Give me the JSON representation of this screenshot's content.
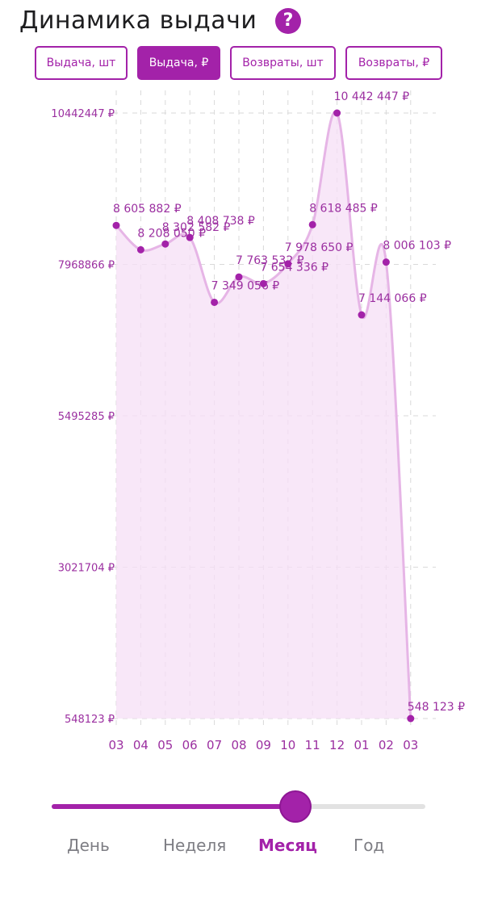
{
  "header": {
    "title": "Динамика выдачи",
    "help_icon": "question-icon"
  },
  "tabs": [
    {
      "label": "Выдача, шт"
    },
    {
      "label": "Выдача, ₽"
    },
    {
      "label": "Возвраты, шт"
    },
    {
      "label": "Возвраты, ₽"
    }
  ],
  "active_tab": 1,
  "colors": {
    "accent": "#a322a9",
    "area_fill": "#f6dff5",
    "line": "#e6b5e6",
    "text": "#9b2fa0"
  },
  "chart_data": {
    "type": "area",
    "x": [
      "03",
      "04",
      "05",
      "06",
      "07",
      "08",
      "09",
      "10",
      "11",
      "12",
      "01",
      "02",
      "03"
    ],
    "values": [
      8605882,
      8208050,
      8302582,
      8408738,
      7349056,
      7763532,
      7654336,
      7978650,
      8618485,
      10442447,
      7144066,
      8006103,
      548123
    ],
    "value_labels": [
      "8 605 882 ₽",
      "8 208 050 ₽",
      "8 302 582 ₽",
      "8 408 738 ₽",
      "7 349 056 ₽",
      "7 763 532 ₽",
      "7 654 336 ₽",
      "7 978 650 ₽",
      "8 618 485 ₽",
      "10 442 447 ₽",
      "7 144 066 ₽",
      "8 006 103 ₽",
      "548 123 ₽"
    ],
    "y_ticks": [
      10442447,
      7968866,
      5495285,
      3021704,
      548123
    ],
    "y_tick_labels": [
      "10442447 ₽",
      "7968866 ₽",
      "5495285 ₽",
      "3021704 ₽",
      "548123 ₽"
    ],
    "ylim": [
      548123,
      10442447
    ],
    "grid": true
  },
  "slider": {
    "value_fraction": 0.65
  },
  "periods": [
    {
      "label": "День"
    },
    {
      "label": "Неделя"
    },
    {
      "label": "Месяц"
    },
    {
      "label": "Год"
    }
  ],
  "active_period": 2
}
